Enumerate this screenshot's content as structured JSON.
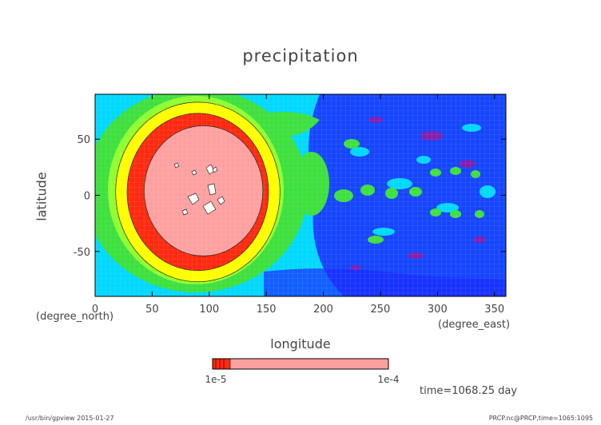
{
  "chart_data": {
    "type": "heatmap",
    "title": "precipitation",
    "xlabel": "longitude",
    "xunit": "(degree_east)",
    "ylabel": "latitude",
    "yunit": "(degree_north)",
    "xlim": [
      0,
      360
    ],
    "ylim": [
      -90,
      90
    ],
    "x_ticks": [
      0,
      50,
      100,
      150,
      200,
      250,
      300,
      350
    ],
    "y_ticks": [
      -50,
      0,
      50
    ],
    "features": [
      {
        "name": "outer-ring",
        "color": "#ffff00",
        "cx": 90,
        "cy": 3,
        "rx": 72,
        "ry": 80
      },
      {
        "name": "red-ring",
        "color": "#ff2a10",
        "cx": 90,
        "cy": 3,
        "rx": 62,
        "ry": 70
      },
      {
        "name": "core",
        "color": "#ffa0a0",
        "cx": 95,
        "cy": 4,
        "rx": 52,
        "ry": 58
      }
    ],
    "colorbar": {
      "colors": [
        "#ff2a10",
        "#ffa0a0"
      ],
      "label_left": "1e-5",
      "label_right": "1e-4"
    },
    "time_label": "time=1068.25 day"
  },
  "footer": {
    "left": "/usr/bin/gpview   2015-01-27",
    "right": "PRCP.nc@PRCP,time=1065:1095"
  },
  "colors": {
    "cyan": "#00d8ff",
    "blue": "#1a2bff",
    "green": "#3ee03e",
    "lightgreen": "#90ff30",
    "yellow": "#ffff00",
    "red": "#ff2a10",
    "pink": "#ffa0a0",
    "purple": "#8020b0"
  }
}
